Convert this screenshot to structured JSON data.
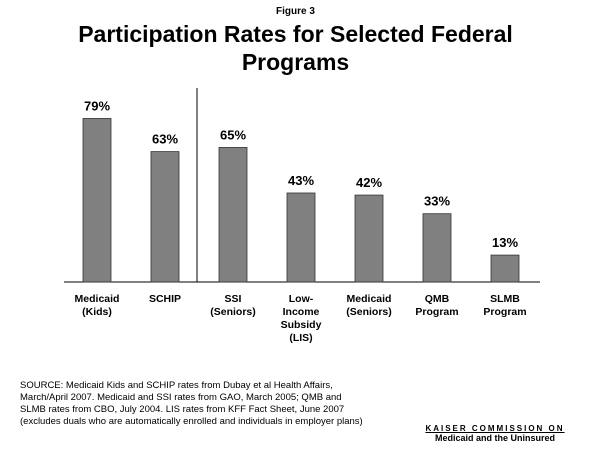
{
  "figure_label": "Figure 3",
  "chart_data": {
    "type": "bar",
    "title": "Participation Rates for Selected Federal Programs",
    "categories": [
      "Medicaid\n(Kids)",
      "SCHIP",
      "SSI\n(Seniors)",
      "Low-\nIncome\nSubsidy\n(LIS)",
      "Medicaid\n(Seniors)",
      "QMB\nProgram",
      "SLMB\nProgram"
    ],
    "values": [
      79,
      63,
      65,
      43,
      42,
      33,
      13
    ],
    "value_labels": [
      "79%",
      "63%",
      "65%",
      "43%",
      "42%",
      "33%",
      "13%"
    ],
    "color": "#808080"
  },
  "source": "SOURCE:  Medicaid Kids and SCHIP rates from Dubay et al Health Affairs, March/April 2007.  Medicaid and SSI rates from GAO, March 2005; QMB and SLMB rates from CBO, July 2004.  LIS rates from KFF Fact Sheet, June 2007 (excludes duals who are automatically enrolled and individuals in employer plans)",
  "logo": {
    "line1": "KAISER COMMISSION ON",
    "line2": "Medicaid and the Uninsured"
  }
}
